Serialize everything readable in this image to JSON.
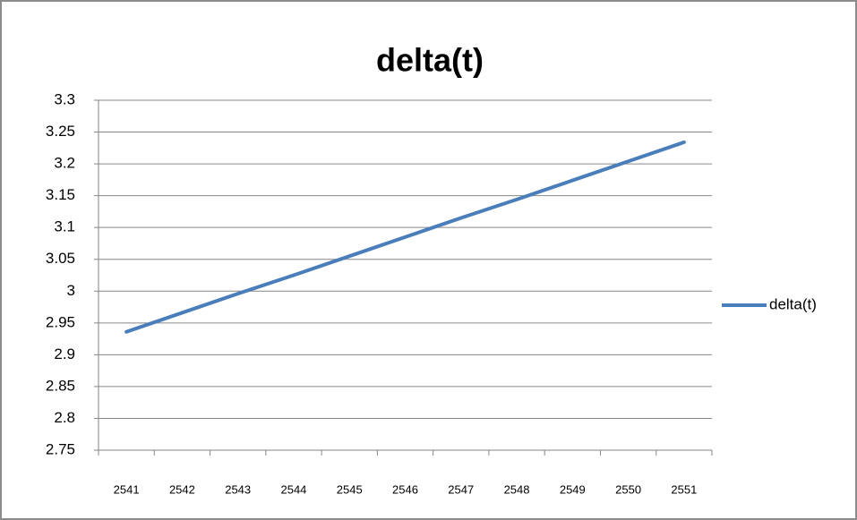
{
  "chart_data": {
    "type": "line",
    "title": "delta(t)",
    "categories": [
      "2541",
      "2542",
      "2543",
      "2544",
      "2545",
      "2546",
      "2547",
      "2548",
      "2549",
      "2550",
      "2551"
    ],
    "series": [
      {
        "name": "delta(t)",
        "color": "#4a7ebb",
        "values": [
          2.936,
          2.966,
          2.996,
          3.025,
          3.055,
          3.085,
          3.115,
          3.144,
          3.174,
          3.204,
          3.234
        ]
      }
    ],
    "ylim": [
      2.75,
      3.3
    ],
    "yticks": [
      2.75,
      2.8,
      2.85,
      2.9,
      2.95,
      3,
      3.05,
      3.1,
      3.15,
      3.2,
      3.25,
      3.3
    ],
    "grid": true,
    "legend": "right"
  }
}
